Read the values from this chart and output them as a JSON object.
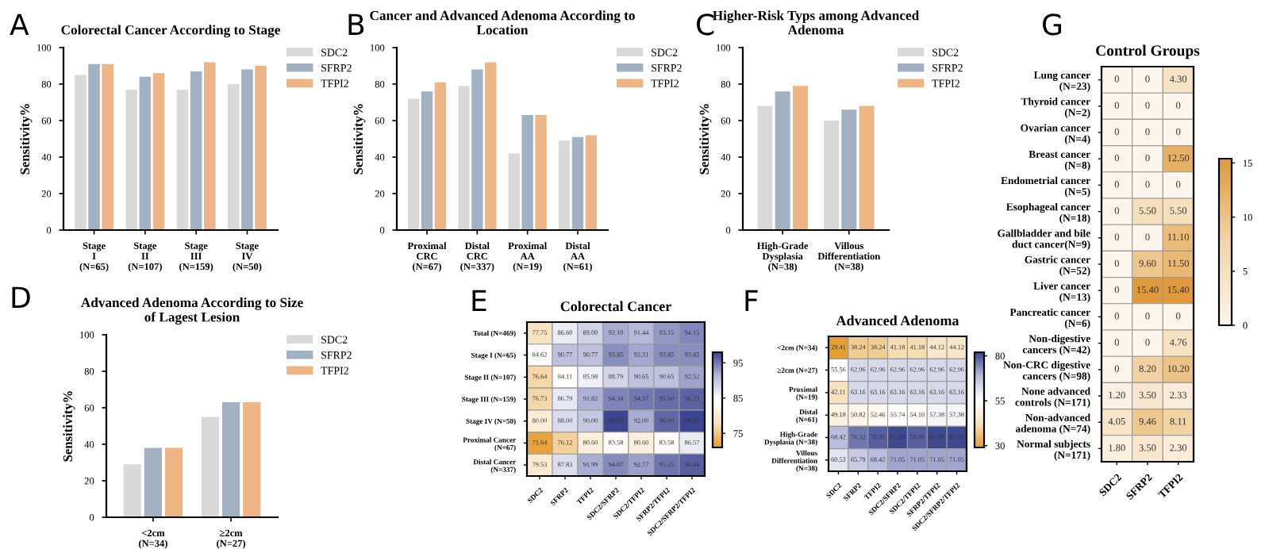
{
  "chart_data": [
    {
      "type": "bar",
      "title": "Colorectal Cancer According to Stage",
      "ylabel": "Sensitivity%",
      "annotations": [
        "A"
      ],
      "categories": [
        "Stage\nI\n(N=65)",
        "Stage\nII\n(N=107)",
        "Stage\nIII\n(N=159)",
        "Stage\nIV\n(N=50)"
      ],
      "series": [
        {
          "name": "SDC2",
          "color": "#d9d9d9",
          "values": [
            85,
            77,
            77,
            80
          ]
        },
        {
          "name": "SFRP2",
          "color": "#a1b1c2",
          "values": [
            91,
            84,
            87,
            88
          ]
        },
        {
          "name": "TFPI2",
          "color": "#efb483",
          "values": [
            91,
            86,
            92,
            90
          ]
        }
      ],
      "ylim": [
        0,
        100
      ],
      "yticks": [
        0,
        20,
        40,
        60,
        80,
        100
      ],
      "grid": false,
      "legend": "right"
    },
    {
      "type": "bar",
      "title": "Cancer and Advanced Adenoma According to\nLocation",
      "ylabel": "Sensitivity%",
      "annotations": [
        "B"
      ],
      "categories": [
        "Proximal\nCRC\n(N=67)",
        "Distal\nCRC\n(N=337)",
        "Proximal\nAA\n(N=19)",
        "Distal\nAA\n(N=61)"
      ],
      "series": [
        {
          "name": "SDC2",
          "color": "#d9d9d9",
          "values": [
            72,
            79,
            42,
            49
          ]
        },
        {
          "name": "SFRP2",
          "color": "#a1b1c2",
          "values": [
            76,
            88,
            63,
            51
          ]
        },
        {
          "name": "TFPI2",
          "color": "#efb483",
          "values": [
            81,
            92,
            63,
            52
          ]
        }
      ],
      "ylim": [
        0,
        100
      ],
      "yticks": [
        0,
        20,
        40,
        60,
        80,
        100
      ],
      "grid": false,
      "legend": "right"
    },
    {
      "type": "bar",
      "title": "Higher-Risk Typs among Advanced\nAdenoma",
      "ylabel": "Sensitivity%",
      "annotations": [
        "C"
      ],
      "categories": [
        "High-Grade\nDysplasia\n(N=38)",
        "Villous\nDifferentiation\n(N=38)"
      ],
      "series": [
        {
          "name": "SDC2",
          "color": "#d9d9d9",
          "values": [
            68,
            60
          ]
        },
        {
          "name": "SFRP2",
          "color": "#a1b1c2",
          "values": [
            76,
            66
          ]
        },
        {
          "name": "TFPI2",
          "color": "#efb483",
          "values": [
            79,
            68
          ]
        }
      ],
      "ylim": [
        0,
        100
      ],
      "yticks": [
        0,
        20,
        40,
        60,
        80,
        100
      ],
      "grid": false,
      "legend": "right"
    },
    {
      "type": "bar",
      "title": "Advanced Adenoma According to Size\nof Lagest Lesion",
      "ylabel": "Sensitivity%",
      "annotations": [
        "D"
      ],
      "categories": [
        "<2cm\n(N=34)",
        "≥2cm\n(N=27)"
      ],
      "series": [
        {
          "name": "SDC2",
          "color": "#d9d9d9",
          "values": [
            29,
            55
          ]
        },
        {
          "name": "SFRP2",
          "color": "#a1b1c2",
          "values": [
            38,
            63
          ]
        },
        {
          "name": "TFPI2",
          "color": "#efb483",
          "values": [
            38,
            63
          ]
        }
      ],
      "ylim": [
        0,
        100
      ],
      "yticks": [
        0,
        20,
        40,
        60,
        80,
        100
      ],
      "grid": false,
      "legend": "right"
    },
    {
      "type": "heatmap",
      "title": "Colorectal Cancer",
      "annotations": [
        "E"
      ],
      "categories": [
        "SDC2",
        "SFRP2",
        "TFPI2",
        "SDC2/SFRP2",
        "SDC2/TFPI2",
        "SFRP2/TFPI2",
        "SDC2/SFRP2/TFPI2"
      ],
      "y_categories": [
        "Total (N=469)",
        "Stage I (N=65)",
        "Stage II (N=107)",
        "Stage III (N=159)",
        "Stage IV (N=50)",
        "Proximal Cancer\n(N=67)",
        "Distal Cancer\n(N=337)"
      ],
      "cells": [
        [
          77.75,
          86.6,
          89.0,
          92.1,
          91.44,
          93.15,
          94.15
        ],
        [
          84.62,
          90.77,
          90.77,
          93.85,
          92.31,
          93.85,
          93.85
        ],
        [
          76.64,
          84.11,
          85.98,
          88.79,
          90.65,
          90.65,
          92.52
        ],
        [
          76.73,
          86.79,
          91.82,
          94.34,
          94.97,
          95.6,
          96.23
        ],
        [
          80.0,
          88.0,
          90.0,
          98.0,
          92.0,
          96.0,
          98.0
        ],
        [
          71.64,
          76.12,
          80.6,
          83.58,
          80.6,
          83.58,
          86.57
        ],
        [
          79.53,
          87.83,
          91.99,
          94.07,
          92.77,
          95.25,
          96.44
        ]
      ],
      "cell_labels": [
        [
          "77.75",
          "86.60",
          "89.00",
          "92.10",
          "91.44",
          "93.15",
          "94.15"
        ],
        [
          "84.62",
          "90.77",
          "90.77",
          "93.85",
          "92.31",
          "93.85",
          "93.85"
        ],
        [
          "76.64",
          "84.11",
          "85.98",
          "88.79",
          "90.65",
          "90.65",
          "92.52"
        ],
        [
          "76.73",
          "86.79",
          "91.82",
          "94.34",
          "94.97",
          "95.60",
          "96.23"
        ],
        [
          "80.00",
          "88.00",
          "90.00",
          "98.00",
          "92.00",
          "96.00",
          "98.00"
        ],
        [
          "71.64",
          "76.12",
          "80.60",
          "83.58",
          "80.60",
          "83.58",
          "86.57"
        ],
        [
          "79.53",
          "87.83",
          "91.99",
          "94.07",
          "92.77",
          "95.25",
          "96.44"
        ]
      ],
      "clim": [
        71,
        98
      ],
      "cticks": [
        75,
        85,
        95
      ]
    },
    {
      "type": "heatmap",
      "title": "Advanced Adenoma",
      "annotations": [
        "F"
      ],
      "categories": [
        "SDC2",
        "SFRP2",
        "TFPI2",
        "SDC2/SFRP2",
        "SDC2/TFPI2",
        "SFRP2/TFPI2",
        "SDC2/SFRP2/TFPI2"
      ],
      "y_categories": [
        "<2cm (N=34)",
        "≥2cm (N=27)",
        "Proximal\n(N=19)",
        "Distal\n(N=61)",
        "High-Grade\nDysplasia (N=38)",
        "Villous\nDifferentiation\n(N=38)"
      ],
      "cells": [
        [
          29.41,
          38.24,
          38.24,
          41.18,
          41.18,
          44.12,
          44.12
        ],
        [
          55.56,
          62.96,
          62.96,
          62.96,
          62.96,
          62.96,
          62.96
        ],
        [
          42.11,
          63.16,
          63.16,
          63.16,
          63.16,
          63.16,
          63.16
        ],
        [
          49.18,
          50.82,
          52.46,
          55.74,
          54.1,
          57.38,
          57.38
        ],
        [
          68.42,
          76.32,
          78.95,
          81.58,
          78.95,
          81.58,
          81.58
        ],
        [
          60.53,
          65.79,
          68.42,
          71.05,
          71.05,
          71.05,
          71.05
        ]
      ],
      "cell_labels": [
        [
          "29.41",
          "38.24",
          "38.24",
          "41.18",
          "41.18",
          "44.12",
          "44.12"
        ],
        [
          "55.56",
          "62.96",
          "62.96",
          "62.96",
          "62.96",
          "62.96",
          "62.96"
        ],
        [
          "42.11",
          "63.16",
          "63.16",
          "63.16",
          "63.16",
          "63.16",
          "63.16"
        ],
        [
          "49.18",
          "50.82",
          "52.46",
          "55.74",
          "54.10",
          "57.38",
          "57.38"
        ],
        [
          "68.42",
          "76.32",
          "78.95",
          "81.58",
          "78.95",
          "81.58",
          "81.58"
        ],
        [
          "60.53",
          "65.79",
          "68.42",
          "71.05",
          "71.05",
          "71.05",
          "71.05"
        ]
      ],
      "clim": [
        29,
        82
      ],
      "cticks": [
        30,
        55,
        80
      ]
    },
    {
      "type": "heatmap",
      "title": "Control Groups",
      "annotations": [
        "G"
      ],
      "categories": [
        "SDC2",
        "SFRP2",
        "TFPI2"
      ],
      "y_categories": [
        "Lung cancer\n(N=23)",
        "Thyroid cancer\n(N=2)",
        "Ovarian cancer\n(N=4)",
        "Breast cancer\n(N=8)",
        "Endometrial cancer\n(N=5)",
        "Esophageal cancer\n(N=18)",
        "Gallbladder and bile\nduct cancer(N=9)",
        "Gastric cancer\n(N=52)",
        "Liver cancer\n(N=13)",
        "Pancreatic cancer\n(N=6)",
        "Non-digestive\ncancers (N=42)",
        "Non-CRC digestive\ncancers (N=98)",
        "None advanced\ncontrols (N=171)",
        "Non-advanced\nadenoma (N=74)",
        "Normal subjects\n(N=171)"
      ],
      "cells": [
        [
          0,
          0,
          4.3
        ],
        [
          0,
          0,
          0
        ],
        [
          0,
          0,
          0
        ],
        [
          0,
          0,
          12.5
        ],
        [
          0,
          0,
          0
        ],
        [
          0,
          5.5,
          5.5
        ],
        [
          0,
          0,
          11.1
        ],
        [
          0,
          9.6,
          11.5
        ],
        [
          0,
          15.4,
          15.4
        ],
        [
          0,
          0,
          0
        ],
        [
          0,
          0,
          4.76
        ],
        [
          0,
          8.2,
          10.2
        ],
        [
          1.2,
          3.5,
          2.33
        ],
        [
          4.05,
          9.46,
          8.11
        ],
        [
          1.8,
          3.5,
          2.3
        ]
      ],
      "cell_labels": [
        [
          "0",
          "0",
          "4.30"
        ],
        [
          "0",
          "0",
          "0"
        ],
        [
          "0",
          "0",
          "0"
        ],
        [
          "0",
          "0",
          "12.50"
        ],
        [
          "0",
          "0",
          "0"
        ],
        [
          "0",
          "5.50",
          "5.50"
        ],
        [
          "0",
          "0",
          "11.10"
        ],
        [
          "0",
          "9.60",
          "11.50"
        ],
        [
          "0",
          "15.40",
          "15.40"
        ],
        [
          "0",
          "0",
          "0"
        ],
        [
          "0",
          "0",
          "4.76"
        ],
        [
          "0",
          "8.20",
          "10.20"
        ],
        [
          "1.20",
          "3.50",
          "2.33"
        ],
        [
          "4.05",
          "9.46",
          "8.11"
        ],
        [
          "1.80",
          "3.50",
          "2.30"
        ]
      ],
      "clim": [
        0,
        15.4
      ],
      "cticks": [
        0,
        5,
        10,
        15
      ]
    }
  ]
}
